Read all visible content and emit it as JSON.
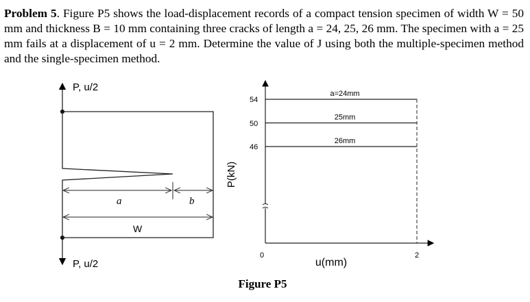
{
  "problem": {
    "label": "Problem 5",
    "text": ". Figure P5 shows the load-displacement records of a compact tension specimen of width W = 50 mm and thickness B = 10 mm containing three cracks of length a = 24, 25, 26 mm. The specimen with a = 25 mm fails at a displacement of u = 2 mm. Determine the value of J using both the multiple-specimen method and the single-specimen method."
  },
  "specimen": {
    "top_load_label": "P, u/2",
    "bottom_load_label": "P, u/2",
    "a_label": "a",
    "b_label": "b",
    "w_label": "W"
  },
  "chart_data": {
    "type": "line",
    "title": "",
    "xlabel": "u(mm)",
    "ylabel": "P(kN)",
    "x_ticks": [
      "0",
      "2"
    ],
    "y_ticks": [
      "54",
      "50",
      "46"
    ],
    "series": [
      {
        "name": "a=24mm",
        "u": [
          0,
          2
        ],
        "P": [
          54,
          54
        ]
      },
      {
        "name": "25mm",
        "u": [
          0,
          2
        ],
        "P": [
          50,
          50
        ]
      },
      {
        "name": "26mm",
        "u": [
          0,
          2
        ],
        "P": [
          46,
          46
        ]
      }
    ],
    "failure_u": 2,
    "y_axis_break": true
  },
  "figure_caption": "Figure P5"
}
